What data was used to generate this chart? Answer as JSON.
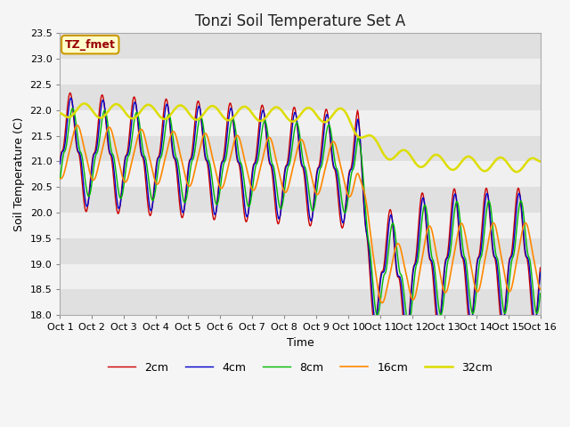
{
  "title": "Tonzi Soil Temperature Set A",
  "xlabel": "Time",
  "ylabel": "Soil Temperature (C)",
  "annotation": "TZ_fmet",
  "ylim": [
    18.0,
    23.5
  ],
  "yticks": [
    18.0,
    18.5,
    19.0,
    19.5,
    20.0,
    20.5,
    21.0,
    21.5,
    22.0,
    22.5,
    23.0,
    23.5
  ],
  "xtick_labels": [
    "Oct 1",
    "Oct 2",
    "Oct 3",
    "Oct 4",
    "Oct 5",
    "Oct 6",
    "Oct 7",
    "Oct 8",
    "Oct 9",
    "Oct 10",
    "Oct 11",
    "Oct 12",
    "Oct 13",
    "Oct 14",
    "Oct 15",
    "Oct 16"
  ],
  "colors": {
    "2cm": "#cc0000",
    "4cm": "#0000cc",
    "8cm": "#00bb00",
    "16cm": "#ff8800",
    "32cm": "#dddd00"
  },
  "annotation_bg": "#ffffcc",
  "annotation_fg": "#990000",
  "annotation_border": "#cc9900",
  "title_fontsize": 12,
  "axis_fontsize": 9,
  "tick_fontsize": 8,
  "n_points": 721,
  "fig_bg": "#f5f5f5",
  "plot_bg_light": "#f0f0f0",
  "plot_bg_dark": "#e0e0e0"
}
